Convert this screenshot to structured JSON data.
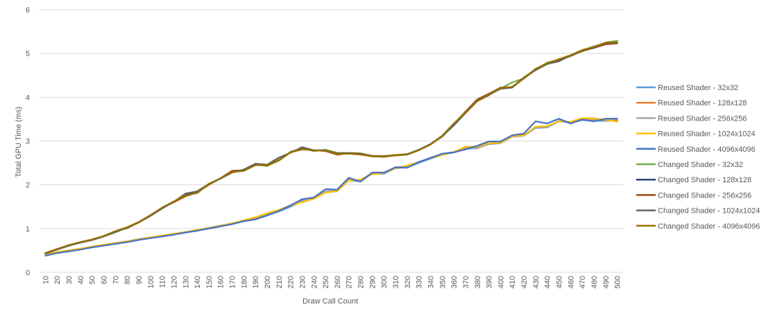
{
  "chart_data": {
    "type": "line",
    "title": "",
    "xlabel": "Draw Call Count",
    "ylabel": "Total GPU Time (ms)",
    "ylim": [
      0,
      6
    ],
    "yticks": [
      "0",
      "1",
      "2",
      "3",
      "4",
      "5",
      "6"
    ],
    "grid": "horizontal",
    "legend_position": "right",
    "categories": [
      "10",
      "20",
      "30",
      "40",
      "50",
      "60",
      "70",
      "80",
      "90",
      "100",
      "110",
      "120",
      "130",
      "140",
      "150",
      "160",
      "170",
      "180",
      "190",
      "200",
      "210",
      "220",
      "230",
      "240",
      "250",
      "260",
      "270",
      "280",
      "290",
      "300",
      "310",
      "320",
      "330",
      "340",
      "350",
      "360",
      "370",
      "380",
      "390",
      "400",
      "410",
      "420",
      "430",
      "440",
      "450",
      "460",
      "470",
      "480",
      "490",
      "500"
    ],
    "series": [
      {
        "name": "Reused Shader - 32x32",
        "color": "#5B9BD5",
        "values": [
          0.4,
          0.45,
          0.49,
          0.53,
          0.58,
          0.62,
          0.66,
          0.7,
          0.75,
          0.79,
          0.82,
          0.87,
          0.91,
          0.96,
          1.0,
          1.05,
          1.11,
          1.17,
          1.23,
          1.31,
          1.39,
          1.5,
          1.62,
          1.68,
          1.83,
          1.85,
          2.1,
          2.08,
          2.26,
          2.25,
          2.38,
          2.4,
          2.5,
          2.6,
          2.68,
          2.74,
          2.82,
          2.84,
          2.93,
          2.95,
          3.1,
          3.12,
          3.3,
          3.31,
          3.45,
          3.42,
          3.48,
          3.46,
          3.46,
          3.47
        ]
      },
      {
        "name": "Reused Shader - 128x128",
        "color": "#ED7D31",
        "values": [
          0.41,
          0.46,
          0.5,
          0.54,
          0.59,
          0.63,
          0.67,
          0.71,
          0.76,
          0.8,
          0.83,
          0.88,
          0.92,
          0.96,
          1.01,
          1.06,
          1.12,
          1.18,
          1.24,
          1.33,
          1.41,
          1.52,
          1.63,
          1.69,
          1.84,
          1.86,
          2.12,
          2.1,
          2.25,
          2.27,
          2.4,
          2.42,
          2.52,
          2.61,
          2.69,
          2.75,
          2.83,
          2.86,
          2.94,
          2.96,
          3.11,
          3.13,
          3.32,
          3.33,
          3.46,
          3.43,
          3.52,
          3.52,
          3.48,
          3.47
        ]
      },
      {
        "name": "Reused Shader - 256x256",
        "color": "#A5A5A5",
        "values": [
          0.41,
          0.46,
          0.5,
          0.54,
          0.59,
          0.63,
          0.67,
          0.71,
          0.76,
          0.8,
          0.84,
          0.88,
          0.92,
          0.97,
          1.02,
          1.07,
          1.12,
          1.18,
          1.25,
          1.34,
          1.42,
          1.52,
          1.64,
          1.7,
          1.85,
          1.87,
          2.11,
          2.11,
          2.26,
          2.27,
          2.39,
          2.41,
          2.52,
          2.62,
          2.7,
          2.75,
          2.84,
          2.83,
          2.95,
          2.97,
          3.12,
          3.13,
          3.31,
          3.32,
          3.46,
          3.44,
          3.5,
          3.49,
          3.49,
          3.5
        ]
      },
      {
        "name": "Reused Shader - 1024x1024",
        "color": "#FFC000",
        "values": [
          0.41,
          0.46,
          0.5,
          0.54,
          0.59,
          0.63,
          0.67,
          0.71,
          0.75,
          0.8,
          0.84,
          0.88,
          0.92,
          0.97,
          1.01,
          1.06,
          1.12,
          1.19,
          1.26,
          1.35,
          1.43,
          1.53,
          1.6,
          1.68,
          1.82,
          1.86,
          2.1,
          2.12,
          2.24,
          2.27,
          2.38,
          2.44,
          2.52,
          2.61,
          2.68,
          2.75,
          2.87,
          2.87,
          2.95,
          2.96,
          3.11,
          3.13,
          3.33,
          3.34,
          3.45,
          3.44,
          3.52,
          3.51,
          3.49,
          3.44
        ]
      },
      {
        "name": "Reused Shader - 4096x4096",
        "color": "#4472C4",
        "values": [
          0.38,
          0.44,
          0.48,
          0.52,
          0.57,
          0.61,
          0.65,
          0.69,
          0.74,
          0.78,
          0.82,
          0.86,
          0.91,
          0.95,
          1.0,
          1.05,
          1.1,
          1.17,
          1.21,
          1.3,
          1.4,
          1.53,
          1.67,
          1.71,
          1.9,
          1.89,
          2.16,
          2.07,
          2.28,
          2.28,
          2.4,
          2.39,
          2.52,
          2.61,
          2.71,
          2.74,
          2.81,
          2.89,
          2.99,
          2.99,
          3.13,
          3.17,
          3.45,
          3.4,
          3.51,
          3.4,
          3.49,
          3.45,
          3.51,
          3.51
        ]
      },
      {
        "name": "Changed Shader - 32x32",
        "color": "#70AD47",
        "values": [
          0.44,
          0.53,
          0.62,
          0.68,
          0.74,
          0.82,
          0.93,
          1.03,
          1.15,
          1.3,
          1.47,
          1.62,
          1.77,
          1.83,
          2.02,
          2.15,
          2.3,
          2.33,
          2.46,
          2.43,
          2.55,
          2.74,
          2.84,
          2.77,
          2.8,
          2.73,
          2.73,
          2.72,
          2.66,
          2.66,
          2.68,
          2.69,
          2.8,
          2.93,
          3.12,
          3.4,
          3.65,
          3.93,
          4.06,
          4.2,
          4.34,
          4.43,
          4.63,
          4.79,
          4.86,
          4.96,
          5.05,
          5.14,
          5.25,
          5.29
        ]
      },
      {
        "name": "Changed Shader - 128x128",
        "color": "#264478",
        "values": [
          0.43,
          0.52,
          0.61,
          0.68,
          0.74,
          0.82,
          0.92,
          1.02,
          1.14,
          1.29,
          1.46,
          1.61,
          1.76,
          1.83,
          2.01,
          2.14,
          2.29,
          2.32,
          2.45,
          2.45,
          2.56,
          2.75,
          2.83,
          2.78,
          2.79,
          2.72,
          2.72,
          2.71,
          2.66,
          2.65,
          2.67,
          2.69,
          2.79,
          2.92,
          3.11,
          3.36,
          3.64,
          3.91,
          4.05,
          4.2,
          4.23,
          4.43,
          4.63,
          4.76,
          4.83,
          4.96,
          5.06,
          5.13,
          5.21,
          5.24
        ]
      },
      {
        "name": "Changed Shader - 256x256",
        "color": "#9E480E",
        "values": [
          0.44,
          0.53,
          0.62,
          0.69,
          0.75,
          0.83,
          0.94,
          1.01,
          1.14,
          1.3,
          1.47,
          1.6,
          1.74,
          1.82,
          2.0,
          2.15,
          2.32,
          2.33,
          2.46,
          2.44,
          2.57,
          2.74,
          2.81,
          2.79,
          2.77,
          2.69,
          2.72,
          2.71,
          2.66,
          2.65,
          2.68,
          2.7,
          2.79,
          2.93,
          3.12,
          3.39,
          3.67,
          3.95,
          4.08,
          4.22,
          4.23,
          4.45,
          4.64,
          4.76,
          4.86,
          4.94,
          5.06,
          5.14,
          5.21,
          5.23
        ]
      },
      {
        "name": "Changed Shader - 1024x1024",
        "color": "#636363",
        "values": [
          0.44,
          0.53,
          0.62,
          0.69,
          0.75,
          0.82,
          0.93,
          1.02,
          1.15,
          1.31,
          1.47,
          1.61,
          1.8,
          1.85,
          2.02,
          2.14,
          2.28,
          2.35,
          2.48,
          2.46,
          2.62,
          2.73,
          2.86,
          2.79,
          2.79,
          2.72,
          2.71,
          2.7,
          2.65,
          2.64,
          2.67,
          2.7,
          2.8,
          2.93,
          3.1,
          3.37,
          3.64,
          3.92,
          4.06,
          4.19,
          4.22,
          4.44,
          4.62,
          4.76,
          4.82,
          4.95,
          5.07,
          5.16,
          5.24,
          5.24
        ]
      },
      {
        "name": "Changed Shader - 4096x4096",
        "color": "#997300",
        "values": [
          0.44,
          0.53,
          0.62,
          0.69,
          0.75,
          0.83,
          0.94,
          1.03,
          1.15,
          1.3,
          1.48,
          1.62,
          1.76,
          1.81,
          2.02,
          2.15,
          2.29,
          2.32,
          2.45,
          2.45,
          2.56,
          2.74,
          2.82,
          2.78,
          2.78,
          2.71,
          2.71,
          2.69,
          2.65,
          2.64,
          2.67,
          2.69,
          2.79,
          2.92,
          3.12,
          3.4,
          3.65,
          3.91,
          4.06,
          4.21,
          4.24,
          4.43,
          4.65,
          4.78,
          4.87,
          4.96,
          5.08,
          5.15,
          5.25,
          5.26
        ]
      }
    ]
  }
}
